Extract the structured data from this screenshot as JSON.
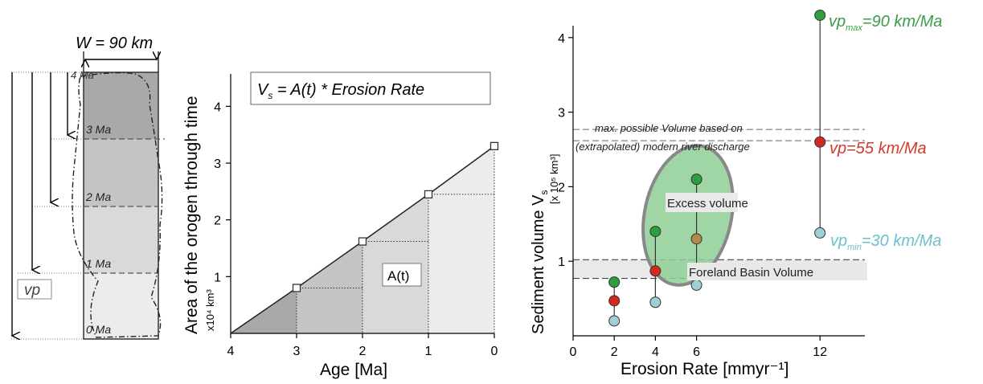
{
  "left_panel": {
    "width_label": "W = 90 km",
    "age_labels": [
      "4 Ma",
      "3 Ma",
      "2 Ma",
      "1 Ma",
      "0 Ma"
    ],
    "vp_label": "vp"
  },
  "colors": {
    "band_4_3": "#a9a9a9",
    "band_3_2": "#c4c4c4",
    "band_2_1": "#d9d9d9",
    "band_1_0": "#ececec",
    "green": "#2e9e3e",
    "red": "#d42a1e",
    "cyan": "#9fd0d8",
    "brown": "#b48a46",
    "green_text": "#3b9c4a",
    "red_text": "#d33a2c",
    "cyan_text": "#6cc0cf"
  },
  "chart_data": [
    {
      "type": "area",
      "formula": "V = A(t) * Erosion Rate",
      "formula_sub": "s",
      "ylabel": "Area of the orogen through time",
      "yunit": "x10⁴ km³",
      "xlabel": "Age [Ma]",
      "x_ticks": [
        "4",
        "3",
        "2",
        "1",
        "0"
      ],
      "y_ticks": [
        "1",
        "2",
        "3",
        "4"
      ],
      "xlim": [
        4,
        0
      ],
      "ylim": [
        0,
        4.6
      ],
      "points": [
        {
          "x": 4,
          "y": 0
        },
        {
          "x": 3,
          "y": 0.8
        },
        {
          "x": 2,
          "y": 1.62
        },
        {
          "x": 1,
          "y": 2.45
        },
        {
          "x": 0,
          "y": 3.3
        }
      ],
      "region_label": "A(t)"
    },
    {
      "type": "scatter",
      "ylabel": "Sediment volume V",
      "ylabel_sub": "s",
      "yunit": "[x 10⁵ km³]",
      "xlabel": "Erosion Rate [mmyr⁻¹]",
      "x_ticks": [
        "0",
        "2",
        "4",
        "6",
        "12"
      ],
      "y_ticks": [
        "1",
        "2",
        "3",
        "4"
      ],
      "xlim": [
        0,
        14
      ],
      "ylim": [
        0,
        4.15
      ],
      "series": [
        {
          "name": "vp=90 km/Ma",
          "color": "green",
          "points": [
            {
              "x": 2,
              "y": 0.72
            },
            {
              "x": 4,
              "y": 1.4
            },
            {
              "x": 6,
              "y": 2.1
            },
            {
              "x": 12,
              "y": 4.3
            }
          ]
        },
        {
          "name": "vp=55 km/Ma",
          "color": "red",
          "points": [
            {
              "x": 2,
              "y": 0.47
            },
            {
              "x": 4,
              "y": 0.87
            },
            {
              "x": 12,
              "y": 2.6
            }
          ]
        },
        {
          "name": "vp=55 km/Ma (overlap)",
          "color": "brown",
          "points": [
            {
              "x": 6,
              "y": 1.3
            }
          ]
        },
        {
          "name": "vp=30 km/Ma",
          "color": "cyan",
          "points": [
            {
              "x": 2,
              "y": 0.2
            },
            {
              "x": 4,
              "y": 0.45
            },
            {
              "x": 6,
              "y": 0.68
            },
            {
              "x": 12,
              "y": 1.38
            }
          ]
        }
      ],
      "max_volume_line": 2.65,
      "max_volume_label_1": "max. possible Volume based on",
      "max_volume_label_2": "(extrapolated) modern river discharge",
      "foreland_band": [
        0.77,
        1.02
      ],
      "foreland_label": "Foreland Basin Volume",
      "excess_label": "Excess volume",
      "vp_max_prefix": "vp",
      "vp_max_sub": "max",
      "vp_max_value": "=90 km/Ma",
      "vp_mid_label": "vp=55 km/Ma",
      "vp_min_prefix": "vp",
      "vp_min_sub": "min",
      "vp_min_value": "=30 km/Ma"
    }
  ]
}
